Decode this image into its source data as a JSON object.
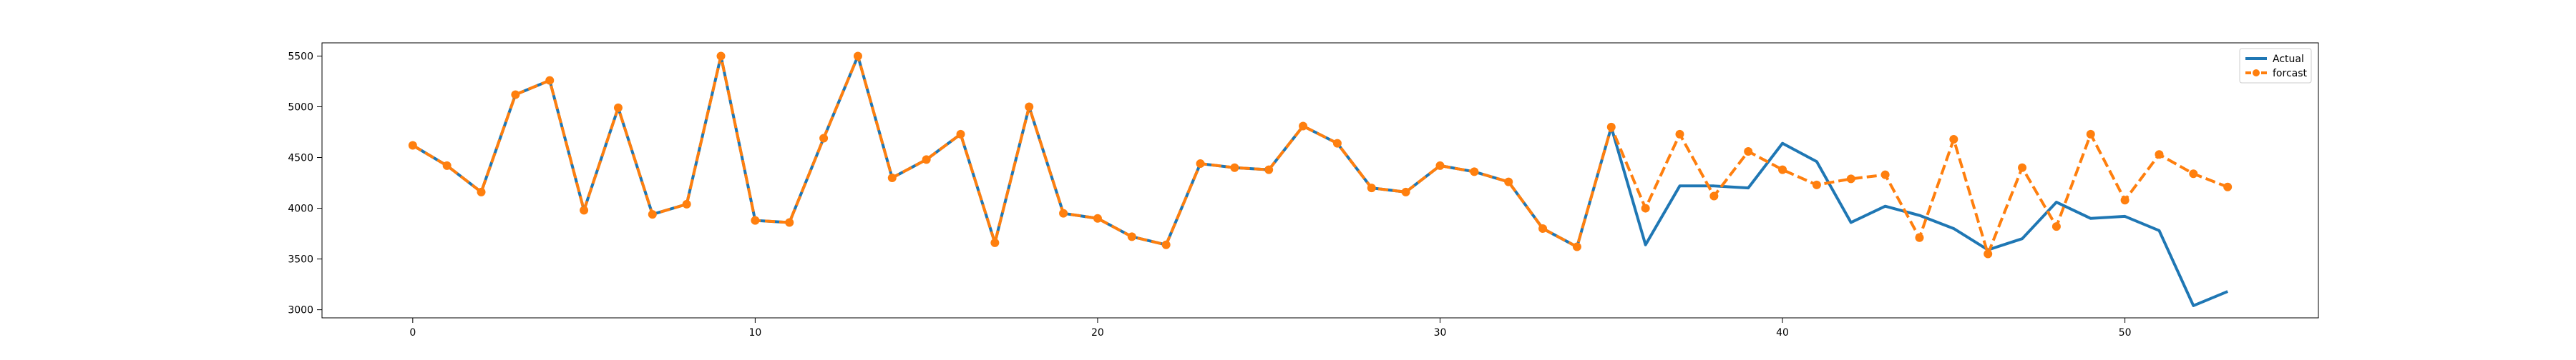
{
  "chart_data": {
    "type": "line",
    "title": "",
    "xlabel": "",
    "ylabel": "",
    "xlim": [
      -2.65,
      55.65
    ],
    "ylim": [
      2920,
      5630
    ],
    "x_ticks": [
      0,
      10,
      20,
      30,
      40,
      50
    ],
    "y_ticks": [
      3000,
      3500,
      4000,
      4500,
      5000,
      5500
    ],
    "grid": false,
    "legend_position": "top-right",
    "series": [
      {
        "name": "Actual",
        "color": "#1f77b4",
        "style": "solid",
        "marker": "none",
        "x": [
          0,
          1,
          2,
          3,
          4,
          5,
          6,
          7,
          8,
          9,
          10,
          11,
          12,
          13,
          14,
          15,
          16,
          17,
          18,
          19,
          20,
          21,
          22,
          23,
          24,
          25,
          26,
          27,
          28,
          29,
          30,
          31,
          32,
          33,
          34,
          35,
          36,
          37,
          38,
          39,
          40,
          41,
          42,
          43,
          44,
          45,
          46,
          47,
          48,
          49,
          50,
          51,
          52,
          53
        ],
        "values": [
          4620,
          4420,
          4160,
          5120,
          5260,
          3980,
          4990,
          3940,
          4040,
          5500,
          3880,
          3860,
          4690,
          5500,
          4300,
          4480,
          4730,
          3660,
          5000,
          3950,
          3900,
          3720,
          3640,
          4440,
          4400,
          4380,
          4810,
          4640,
          4200,
          4160,
          4420,
          4360,
          4260,
          3800,
          3620,
          4800,
          3640,
          4220,
          4220,
          4200,
          4640,
          4460,
          3860,
          4020,
          3930,
          3800,
          3590,
          3700,
          4060,
          3900,
          3920,
          3780,
          3040,
          3180
        ]
      },
      {
        "name": "forcast",
        "color": "#ff7f0e",
        "style": "dashed",
        "marker": "circle",
        "x": [
          0,
          1,
          2,
          3,
          4,
          5,
          6,
          7,
          8,
          9,
          10,
          11,
          12,
          13,
          14,
          15,
          16,
          17,
          18,
          19,
          20,
          21,
          22,
          23,
          24,
          25,
          26,
          27,
          28,
          29,
          30,
          31,
          32,
          33,
          34,
          35,
          36,
          37,
          38,
          39,
          40,
          41,
          42,
          43,
          44,
          45,
          46,
          47,
          48,
          49,
          50,
          51,
          52,
          53
        ],
        "values": [
          4620,
          4420,
          4160,
          5120,
          5260,
          3980,
          4990,
          3940,
          4040,
          5500,
          3880,
          3860,
          4690,
          5500,
          4300,
          4480,
          4730,
          3660,
          5000,
          3950,
          3900,
          3720,
          3640,
          4440,
          4400,
          4380,
          4810,
          4640,
          4200,
          4160,
          4420,
          4360,
          4260,
          3800,
          3620,
          4800,
          4000,
          4730,
          4120,
          4560,
          4380,
          4230,
          4290,
          4330,
          3710,
          4680,
          3550,
          4400,
          3820,
          4730,
          4080,
          4530,
          4340,
          4210
        ]
      }
    ]
  }
}
